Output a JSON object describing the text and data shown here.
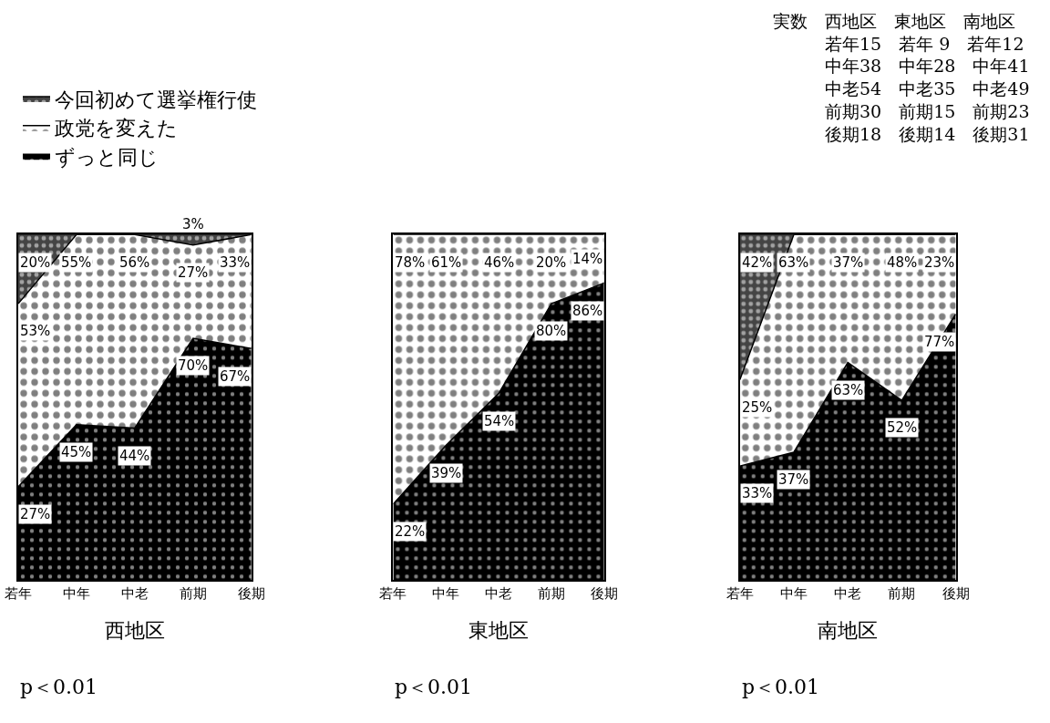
{
  "chart_data": [
    {
      "type": "area",
      "stacked": true,
      "categories": [
        "若年",
        "中年",
        "中老",
        "前期",
        "後期"
      ],
      "xlabel": "西地区",
      "annotations": [
        "p＜0.01"
      ],
      "ylim": [
        0,
        100
      ],
      "tick_labels": "x",
      "legend": "top left",
      "series": [
        {
          "name": "ずっと同じ",
          "color": "#000000",
          "values": [
            27,
            45,
            44,
            70,
            67
          ],
          "value_labels": [
            "27%",
            "45%",
            "44%",
            "70%",
            "67%"
          ]
        },
        {
          "name": "政党を変えた",
          "color": "#ffffff",
          "values": [
            53,
            55,
            56,
            27,
            33
          ],
          "value_labels": [
            "53%",
            "55%",
            "56%",
            "27%",
            "33%"
          ]
        },
        {
          "name": "今回初めて選挙権行使",
          "color": "#444444",
          "values": [
            20,
            0,
            0,
            3,
            0
          ],
          "value_labels": [
            "20%",
            null,
            null,
            "3%",
            null
          ]
        }
      ]
    },
    {
      "type": "area",
      "stacked": true,
      "categories": [
        "若年",
        "中年",
        "中老",
        "前期",
        "後期"
      ],
      "xlabel": "東地区",
      "annotations": [
        "p＜0.01"
      ],
      "ylim": [
        0,
        100
      ],
      "tick_labels": "x",
      "series": [
        {
          "color": "#000000",
          "values": [
            22,
            39,
            54,
            80,
            86
          ],
          "value_labels": [
            "22%",
            "39%",
            "54%",
            "80%",
            "86%"
          ]
        },
        {
          "color": "#ffffff",
          "values": [
            78,
            61,
            46,
            20,
            14
          ],
          "value_labels": [
            "78%",
            "61%",
            "46%",
            "20%",
            "14%"
          ]
        }
      ]
    },
    {
      "type": "area",
      "stacked": true,
      "categories": [
        "若年",
        "中年",
        "中老",
        "前期",
        "後期"
      ],
      "xlabel": "南地区",
      "annotations": [
        "p＜0.01"
      ],
      "ylim": [
        0,
        100
      ],
      "tick_labels": "x",
      "series": [
        {
          "color": "#000000",
          "values": [
            33,
            37,
            63,
            52,
            77
          ],
          "value_labels": [
            "33%",
            "37%",
            "63%",
            "52%",
            "77%"
          ]
        },
        {
          "color": "#ffffff",
          "values": [
            25,
            63,
            37,
            48,
            23
          ],
          "value_labels": [
            "25%",
            "63%",
            "37%",
            "48%",
            "23%"
          ]
        },
        {
          "color": "#444444",
          "values": [
            42,
            0,
            0,
            0,
            0
          ],
          "value_labels": [
            "42%",
            null,
            null,
            null,
            null
          ]
        }
      ]
    },
    {
      "type": "other",
      "annotations": [
        "実数　西地区　東地区　南地区",
        "　　　若年15　若年 9　若年12",
        "　　　中年38　中年28　中年41",
        "　　　中老54　中老35　中老49",
        "　　　前期30　前期15　前期23",
        "　　　後期18　後期14　後期31"
      ]
    }
  ]
}
